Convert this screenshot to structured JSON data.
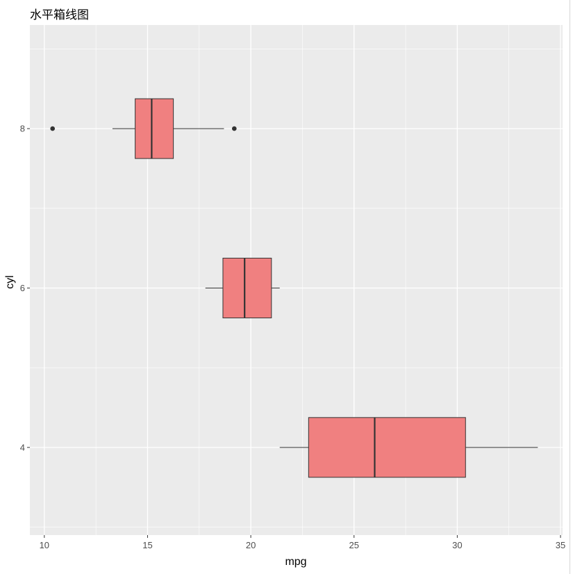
{
  "chart_data": {
    "type": "boxplot",
    "orientation": "horizontal",
    "title": "水平箱线图",
    "xlabel": "mpg",
    "ylabel": "cyl",
    "xlim": [
      9.3,
      35.1
    ],
    "ylim": [
      2.9,
      9.3
    ],
    "x_ticks": [
      10,
      15,
      20,
      25,
      30,
      35
    ],
    "y_ticks": [
      4,
      6,
      8
    ],
    "grid": true,
    "box_fill": "#F08080",
    "box_stroke": "#333333",
    "panel_background": "#EBEBEB",
    "grid_color": "#FFFFFF",
    "boxes": [
      {
        "category": "8",
        "y": 8,
        "whisker_low": 13.3,
        "q1": 14.4,
        "median": 15.2,
        "q3": 16.25,
        "whisker_high": 18.7,
        "outliers": [
          10.4,
          19.2
        ]
      },
      {
        "category": "6",
        "y": 6,
        "whisker_low": 17.8,
        "q1": 18.65,
        "median": 19.7,
        "q3": 21.0,
        "whisker_high": 21.4,
        "outliers": []
      },
      {
        "category": "4",
        "y": 4,
        "whisker_low": 21.4,
        "q1": 22.8,
        "median": 26.0,
        "q3": 30.4,
        "whisker_high": 33.9,
        "outliers": []
      }
    ]
  }
}
